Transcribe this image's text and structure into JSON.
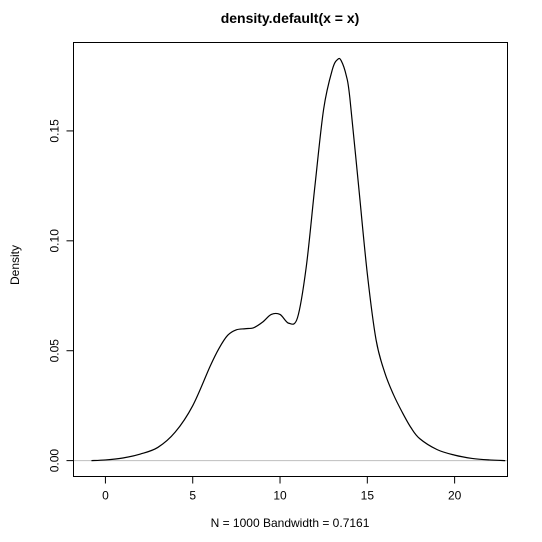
{
  "chart_data": {
    "type": "line",
    "title": "density.default(x = x)",
    "xlabel": "N = 1000   Bandwidth = 0.7161",
    "ylabel": "Density",
    "xlim": [
      -1.8,
      23.0
    ],
    "ylim": [
      -0.007,
      0.19
    ],
    "x_ticks": [
      0,
      5,
      10,
      15,
      20
    ],
    "x_tick_labels": [
      "0",
      "5",
      "10",
      "15",
      "20"
    ],
    "y_ticks": [
      0.0,
      0.05,
      0.1,
      0.15
    ],
    "y_tick_labels": [
      "0.00",
      "0.05",
      "0.10",
      "0.15"
    ],
    "grid": false,
    "reference_line_y": 0,
    "reference_line_color": "#bebebe",
    "line_color": "#000000",
    "series": [
      {
        "x": [
          -0.8,
          0,
          1,
          2,
          3,
          4,
          5,
          6,
          6.5,
          7,
          7.5,
          8,
          8.5,
          9,
          9.5,
          10,
          10.5,
          11,
          11.5,
          12,
          12.5,
          13,
          13.3,
          13.5,
          13.8,
          14,
          14.5,
          15,
          15.5,
          16,
          16.5,
          17,
          17.5,
          18,
          19,
          20,
          21,
          22,
          22.9
        ],
        "y": [
          0.0,
          0.0003,
          0.0012,
          0.003,
          0.006,
          0.013,
          0.025,
          0.043,
          0.051,
          0.057,
          0.0595,
          0.06,
          0.0605,
          0.063,
          0.0665,
          0.0665,
          0.0625,
          0.065,
          0.088,
          0.125,
          0.16,
          0.178,
          0.1825,
          0.182,
          0.175,
          0.165,
          0.125,
          0.085,
          0.055,
          0.04,
          0.03,
          0.022,
          0.015,
          0.01,
          0.005,
          0.0025,
          0.001,
          0.0003,
          0.0
        ]
      }
    ]
  }
}
